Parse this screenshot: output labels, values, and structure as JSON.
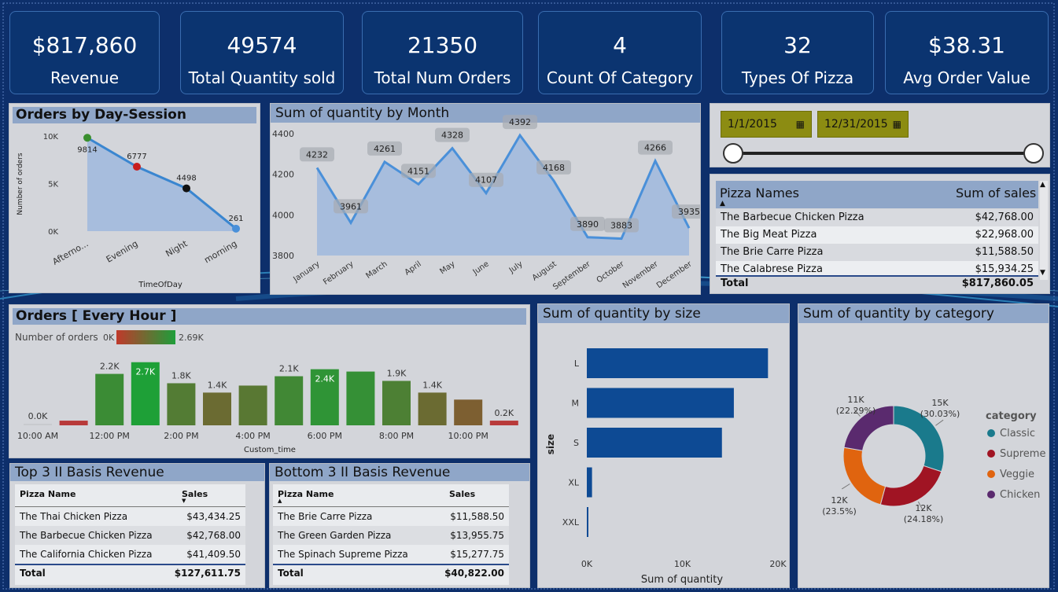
{
  "kpis": [
    {
      "value": "$817,860",
      "label": "Revenue"
    },
    {
      "value": "49574",
      "label": "Total Quantity sold"
    },
    {
      "value": "21350",
      "label": "Total Num Orders"
    },
    {
      "value": "4",
      "label": "Count Of Category"
    },
    {
      "value": "32",
      "label": "Types Of  Pizza"
    },
    {
      "value": "$38.31",
      "label": "Avg Order Value"
    }
  ],
  "date_filter": {
    "start": "1/1/2015",
    "end": "12/31/2015",
    "calendar_icon": "calendar-icon"
  },
  "pizza_table": {
    "col1": "Pizza Names",
    "col2": "Sum of sales",
    "rows": [
      {
        "name": "The Barbecue Chicken Pizza",
        "sales": "$42,768.00"
      },
      {
        "name": "The Big Meat Pizza",
        "sales": "$22,968.00"
      },
      {
        "name": "The Brie Carre Pizza",
        "sales": "$11,588.50"
      },
      {
        "name": "The Calabrese Pizza",
        "sales": "$15,934.25"
      }
    ],
    "total_label": "Total",
    "total_value": "$817,860.05"
  },
  "top3": {
    "title": "Top 3 II Basis Revenue",
    "col1": "Pizza Name",
    "col2": "Sales",
    "rows": [
      {
        "name": "The Thai Chicken Pizza",
        "sales": "$43,434.25"
      },
      {
        "name": "The Barbecue Chicken Pizza",
        "sales": "$42,768.00"
      },
      {
        "name": "The California Chicken Pizza",
        "sales": "$41,409.50"
      }
    ],
    "total_label": "Total",
    "total_value": "$127,611.75"
  },
  "bottom3": {
    "title": "Bottom 3 II Basis Revenue",
    "col1": "Pizza Name",
    "col2": "Sales",
    "rows": [
      {
        "name": "The Brie Carre Pizza",
        "sales": "$11,588.50"
      },
      {
        "name": "The Green Garden Pizza",
        "sales": "$13,955.75"
      },
      {
        "name": "The Spinach Supreme Pizza",
        "sales": "$15,277.75"
      }
    ],
    "total_label": "Total",
    "total_value": "$40,822.00"
  },
  "chart_data": [
    {
      "type": "area",
      "title": "Orders by Day-Session",
      "xlabel": "TimeOfDay",
      "ylabel": "Number of orders",
      "categories": [
        "Afterno...",
        "Evening",
        "Night",
        "morning"
      ],
      "values": [
        9814,
        6777,
        4498,
        261
      ],
      "data_labels": [
        "9814",
        "6777",
        "4498",
        "261"
      ],
      "yticks": [
        "10K",
        "5K",
        "0K"
      ],
      "ylim": [
        0,
        10000
      ],
      "point_colors": [
        "#3a8f2e",
        "#c81e1e",
        "#111111",
        "#4a90d9"
      ]
    },
    {
      "type": "area",
      "title": "Sum of quantity by Month",
      "categories": [
        "January",
        "February",
        "March",
        "April",
        "May",
        "June",
        "July",
        "August",
        "September",
        "October",
        "November",
        "December"
      ],
      "values": [
        4232,
        3961,
        4261,
        4151,
        4328,
        4107,
        4392,
        4168,
        3890,
        3883,
        4266,
        3935
      ],
      "yticks": [
        "4400",
        "4200",
        "4000",
        "3800"
      ],
      "ylim": [
        3800,
        4400
      ]
    },
    {
      "type": "bar",
      "title": "Orders [ Every Hour ]",
      "xlabel": "Custom_time",
      "legend_label": "Number of orders",
      "legend_min": "0K",
      "legend_max": "2.69K",
      "xticks": [
        "10:00 AM",
        "12:00 PM",
        "2:00 PM",
        "4:00 PM",
        "6:00 PM",
        "8:00 PM",
        "10:00 PM"
      ],
      "values": [
        0.01,
        0.2,
        2.2,
        2.7,
        1.8,
        1.4,
        1.7,
        2.1,
        2.4,
        2.3,
        1.9,
        1.4,
        1.1,
        0.2
      ],
      "data_labels": [
        "0.0K",
        "",
        "2.2K",
        "2.7K",
        "1.8K",
        "1.4K",
        "",
        "2.1K",
        "2.4K",
        "",
        "1.9K",
        "1.4K",
        "",
        "0.2K"
      ],
      "ylim": [
        0,
        2.69
      ]
    },
    {
      "type": "bar",
      "title": "Sum of quantity by size",
      "xlabel": "Sum of quantity",
      "ylabel": "size",
      "categories": [
        "L",
        "M",
        "S",
        "XL",
        "XXL"
      ],
      "values": [
        18956,
        15385,
        14137,
        544,
        28
      ],
      "xticks": [
        "0K",
        "10K",
        "20K"
      ],
      "xlim": [
        0,
        20000
      ]
    },
    {
      "type": "pie",
      "title": "Sum of quantity by category",
      "legend_title": "category",
      "categories": [
        "Classic",
        "Supreme",
        "Veggie",
        "Chicken"
      ],
      "values": [
        30.03,
        24.18,
        23.5,
        22.29
      ],
      "slice_labels": [
        [
          "15K",
          "(30.03%)"
        ],
        [
          "12K",
          "(24.18%)"
        ],
        [
          "12K",
          "(23.5%)"
        ],
        [
          "11K",
          "(22.29%)"
        ]
      ],
      "colors": [
        "#1a7a8c",
        "#a01423",
        "#e0640f",
        "#5a2a6e"
      ]
    }
  ]
}
